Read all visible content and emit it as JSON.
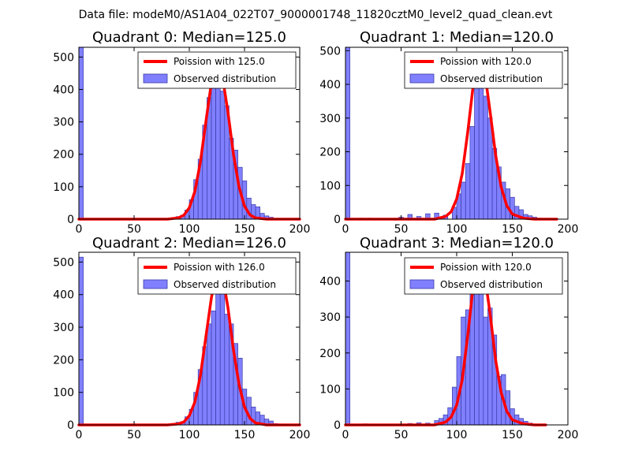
{
  "suptitle": "Data file: modeM0/AS1A04_022T07_9000001748_11820cztM0_level2_quad_clean.evt",
  "colors": {
    "hist_fill": "#8080ff",
    "hist_edge": "#3a3aa8",
    "curve": "#ff0000",
    "background": "#ffffff"
  },
  "legend_observed": "Observed distribution",
  "chart_data": [
    {
      "type": "bar",
      "title": "Quadrant 0: Median=125.0",
      "legend_fit": "Poission with 125.0",
      "median": 125.0,
      "xlim": [
        0,
        200
      ],
      "ylim": [
        0,
        530
      ],
      "xticks": [
        0,
        50,
        100,
        150,
        200
      ],
      "yticks": [
        0,
        100,
        200,
        300,
        400,
        500
      ],
      "bin_width": 4,
      "bin_starts": [
        0,
        80,
        84,
        88,
        92,
        96,
        100,
        104,
        108,
        112,
        116,
        120,
        124,
        128,
        132,
        136,
        140,
        144,
        148,
        152,
        156,
        160,
        164,
        168,
        172,
        176
      ],
      "counts": [
        530,
        2,
        5,
        8,
        12,
        28,
        60,
        122,
        185,
        290,
        375,
        405,
        500,
        395,
        350,
        250,
        213,
        160,
        118,
        65,
        45,
        38,
        18,
        10,
        6,
        2
      ],
      "curve_x": [
        0,
        80,
        90,
        95,
        100,
        105,
        110,
        115,
        120,
        125,
        130,
        135,
        140,
        145,
        150,
        155,
        160,
        170,
        200
      ],
      "curve_y": [
        0,
        0,
        4,
        12,
        35,
        85,
        175,
        300,
        420,
        490,
        440,
        330,
        200,
        100,
        40,
        13,
        4,
        0,
        0
      ]
    },
    {
      "type": "bar",
      "title": "Quadrant 1: Median=120.0",
      "legend_fit": "Poission with 120.0",
      "median": 120.0,
      "xlim": [
        0,
        200
      ],
      "ylim": [
        0,
        510
      ],
      "xticks": [
        0,
        50,
        100,
        150,
        200
      ],
      "yticks": [
        0,
        100,
        200,
        300,
        400,
        500
      ],
      "bin_width": 4,
      "bin_starts": [
        0,
        12,
        20,
        48,
        56,
        64,
        72,
        80,
        88,
        96,
        100,
        104,
        108,
        112,
        116,
        120,
        124,
        128,
        132,
        136,
        140,
        144,
        148,
        152,
        156,
        160,
        164,
        168,
        172,
        176,
        180
      ],
      "counts": [
        510,
        3,
        3,
        6,
        14,
        8,
        16,
        18,
        12,
        35,
        75,
        110,
        165,
        275,
        400,
        465,
        365,
        300,
        210,
        155,
        110,
        90,
        65,
        38,
        28,
        14,
        10,
        6,
        3,
        2,
        1
      ],
      "curve_x": [
        0,
        80,
        90,
        95,
        100,
        105,
        110,
        115,
        120,
        125,
        130,
        135,
        140,
        145,
        150,
        160,
        170,
        190
      ],
      "curve_y": [
        0,
        0,
        8,
        22,
        60,
        135,
        260,
        400,
        480,
        440,
        320,
        190,
        95,
        40,
        15,
        3,
        0,
        0
      ]
    },
    {
      "type": "bar",
      "title": "Quadrant 2: Median=126.0",
      "legend_fit": "Poission with 126.0",
      "median": 126.0,
      "xlim": [
        0,
        200
      ],
      "ylim": [
        0,
        530
      ],
      "xticks": [
        0,
        50,
        100,
        150,
        200
      ],
      "yticks": [
        0,
        100,
        200,
        300,
        400,
        500
      ],
      "bin_width": 4,
      "bin_starts": [
        0,
        84,
        88,
        92,
        96,
        100,
        104,
        108,
        112,
        116,
        120,
        124,
        128,
        132,
        136,
        140,
        144,
        148,
        152,
        156,
        160,
        164,
        168,
        172,
        176
      ],
      "counts": [
        515,
        3,
        8,
        10,
        25,
        48,
        100,
        170,
        240,
        310,
        350,
        485,
        450,
        340,
        310,
        250,
        205,
        110,
        85,
        55,
        40,
        30,
        18,
        12,
        4
      ],
      "curve_x": [
        0,
        80,
        90,
        95,
        100,
        105,
        110,
        115,
        120,
        125,
        130,
        135,
        140,
        145,
        150,
        155,
        160,
        170,
        200
      ],
      "curve_y": [
        0,
        0,
        3,
        9,
        28,
        70,
        150,
        270,
        390,
        480,
        460,
        360,
        230,
        125,
        55,
        20,
        6,
        0,
        0
      ]
    },
    {
      "type": "bar",
      "title": "Quadrant 3: Median=120.0",
      "legend_fit": "Poission with 120.0",
      "median": 120.0,
      "xlim": [
        0,
        200
      ],
      "ylim": [
        0,
        480
      ],
      "xticks": [
        0,
        50,
        100,
        150,
        200
      ],
      "yticks": [
        0,
        100,
        200,
        300,
        400
      ],
      "bin_width": 4,
      "bin_starts": [
        0,
        16,
        56,
        64,
        72,
        80,
        84,
        88,
        92,
        96,
        100,
        104,
        108,
        112,
        116,
        120,
        124,
        128,
        132,
        136,
        140,
        144,
        148,
        152,
        156,
        160,
        164,
        168
      ],
      "counts": [
        480,
        3,
        4,
        6,
        5,
        12,
        18,
        28,
        48,
        105,
        190,
        300,
        320,
        425,
        460,
        410,
        300,
        325,
        250,
        135,
        140,
        95,
        45,
        28,
        18,
        10,
        5,
        2
      ],
      "curve_x": [
        0,
        80,
        90,
        95,
        100,
        105,
        110,
        115,
        120,
        125,
        130,
        135,
        140,
        145,
        150,
        160,
        170,
        180
      ],
      "curve_y": [
        0,
        0,
        8,
        22,
        55,
        125,
        250,
        390,
        460,
        420,
        310,
        180,
        90,
        38,
        14,
        3,
        0,
        0
      ]
    }
  ]
}
